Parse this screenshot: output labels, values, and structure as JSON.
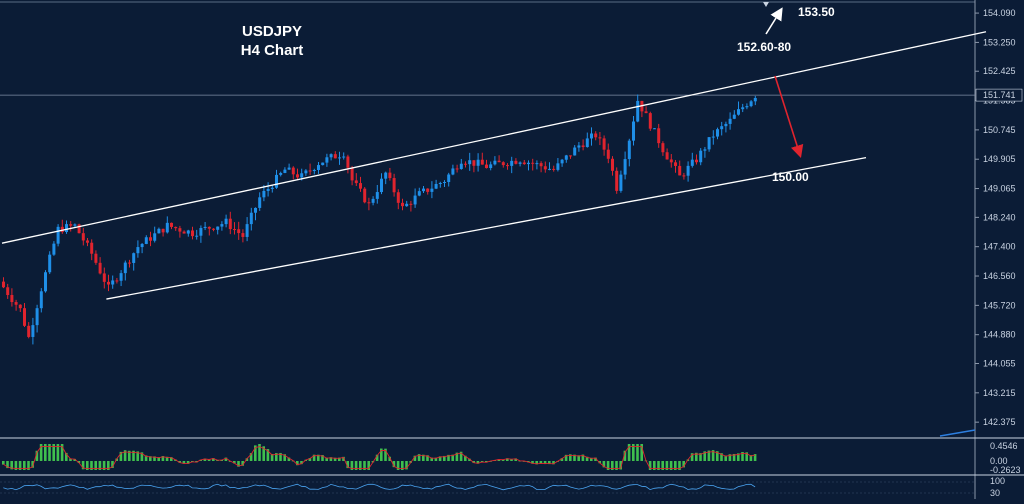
{
  "chart_data": {
    "type": "candlestick",
    "title": "USDJPY",
    "subtitle": "H4 Chart",
    "ylim": [
      141.95,
      154.35
    ],
    "yticks": [
      "154.090",
      "153.250",
      "152.425",
      "151.585",
      "150.745",
      "149.905",
      "149.065",
      "148.240",
      "147.400",
      "146.560",
      "145.720",
      "144.880",
      "144.055",
      "143.215",
      "142.375"
    ],
    "current_price": "151.741",
    "annotations": [
      {
        "text": "153.50"
      },
      {
        "text": "152.60-80"
      },
      {
        "text": "150.00"
      }
    ],
    "channel": {
      "upper": [
        [
          0,
          147.5
        ],
        [
          170,
          151.9
        ]
      ],
      "lower": [
        [
          22,
          145.9
        ],
        [
          180,
          149.95
        ]
      ]
    },
    "colors": {
      "up": "#1f8fe8",
      "down": "#e0242e",
      "background": "#0b1c36",
      "macd_bar": "#3fbf4e",
      "signal": "#e0242e",
      "channel": "#ffffff"
    },
    "oscillator_labels": [
      "0.4546",
      "0.00",
      "-0.2623"
    ],
    "lower_labels": [
      "100",
      "30"
    ]
  }
}
